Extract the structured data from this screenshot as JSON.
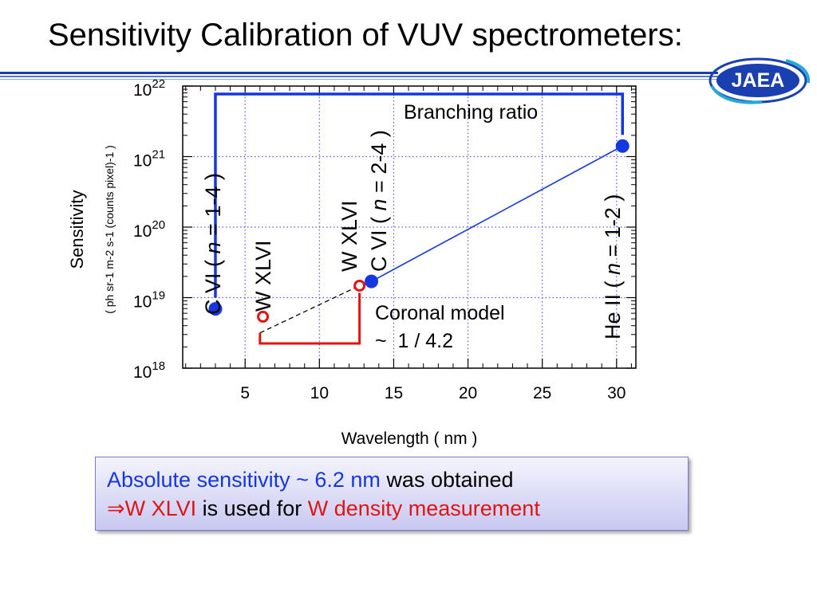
{
  "slide": {
    "title": "Sensitivity Calibration of VUV spectrometers:",
    "logo_text": "JAEA"
  },
  "colors": {
    "accent_blue": "#1537e0",
    "accent_red": "#e11414",
    "rule_blue": "#1a3fb0"
  },
  "chart_data": {
    "type": "scatter",
    "x_label": "Wavelength ( nm )",
    "y_label_line1": "Sensitivity",
    "y_label_line2": "( ph sr-1 m-2 s-1 (counts pixel)-1 )",
    "x_range": [
      0.8,
      31.3
    ],
    "y_range_log10": [
      18,
      22
    ],
    "y_scale": "log",
    "x_ticks": [
      5,
      10,
      15,
      20,
      25,
      30
    ],
    "y_ticks": [
      {
        "exp": 18,
        "base": "10",
        "sup": "18"
      },
      {
        "exp": 19,
        "base": "10",
        "sup": "19"
      },
      {
        "exp": 20,
        "base": "10",
        "sup": "20"
      },
      {
        "exp": 21,
        "base": "10",
        "sup": "21"
      },
      {
        "exp": 22,
        "base": "10",
        "sup": "22"
      }
    ],
    "grid": true,
    "points": [
      {
        "x": 3.0,
        "y_log10": 18.84,
        "style": "filled-blue",
        "label": "C VI ( n = 1-4 )"
      },
      {
        "x": 6.2,
        "y_log10": 18.73,
        "style": "open-red",
        "label": "W XLVI"
      },
      {
        "x": 12.7,
        "y_log10": 19.17,
        "style": "open-red",
        "label": "W XLVI"
      },
      {
        "x": 13.5,
        "y_log10": 19.23,
        "style": "filled-blue",
        "label": "C VI ( n = 2-4 )"
      },
      {
        "x": 30.4,
        "y_log10": 21.15,
        "style": "filled-blue",
        "label": "He II ( n = 1-2 )"
      }
    ],
    "fit_line": {
      "x1": 13.5,
      "y1_log10": 19.23,
      "x2": 30.4,
      "y2_log10": 21.15,
      "color": "#1537e0"
    },
    "extrapolation_line": {
      "x1": 6.0,
      "y1_log10": 18.5,
      "x2": 12.7,
      "y2_log10": 19.17,
      "style": "dashed"
    },
    "annotations": {
      "branching_ratio": "Branching ratio",
      "coronal_model_line1": "Coronal model",
      "coronal_model_line2": "~  1 / 4.2",
      "label_c6_14_pre": "C VI ( ",
      "label_c6_14_post": " = 1-4 )",
      "label_w46": "W XLVI",
      "label_w46_top": "W XLVI",
      "label_c6_24_pre": "C VI ( ",
      "label_c6_24_post": " = 2-4 )",
      "label_he2_pre": "He II ( ",
      "label_he2_post": " = 1-2 )",
      "italic_n": "n"
    }
  },
  "summary": {
    "line1_blue": "Absolute sensitivity ~ 6.2 nm",
    "line1_black": " was obtained",
    "line2_arrow": "⇒",
    "line2_red1": "W XLVI",
    "line2_black": " is used for ",
    "line2_red2": "W",
    "line2_red3": " density measurement"
  }
}
